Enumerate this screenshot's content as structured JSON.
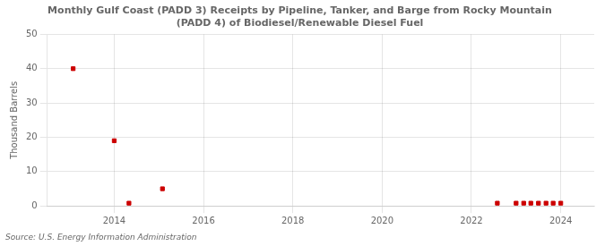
{
  "chart_data": {
    "type": "scatter",
    "title": "Monthly Gulf Coast (PADD 3) Receipts by Pipeline, Tanker, and Barge from Rocky Mountain\n(PADD 4) of Biodiesel/Renewable Diesel Fuel",
    "ylabel": "Thousand Barrels",
    "source": "Source: U.S. Energy Information Administration",
    "x": [
      2013.08,
      2014.0,
      2014.33,
      2015.08,
      2022.58,
      2023.0,
      2023.17,
      2023.33,
      2023.5,
      2023.67,
      2023.83,
      2024.0
    ],
    "values": [
      40,
      19,
      0.8,
      5,
      0.8,
      0.8,
      0.8,
      0.8,
      0.8,
      0.8,
      0.8,
      0.8
    ],
    "color": "#cc0000",
    "marker": "square",
    "xlim": [
      2012.5,
      2024.75
    ],
    "ylim": [
      0,
      50
    ],
    "xticks": [
      2014,
      2016,
      2018,
      2020,
      2022,
      2024
    ],
    "yticks": [
      0,
      10,
      20,
      30,
      40,
      50
    ],
    "grid": true
  }
}
